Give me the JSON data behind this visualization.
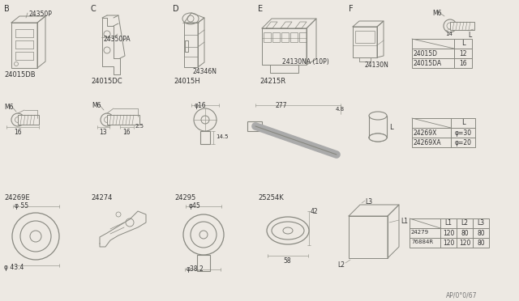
{
  "bg_color": "#ede9e3",
  "line_color": "#888880",
  "text_color": "#333333",
  "fig_width": 6.4,
  "fig_height": 3.72,
  "dpi": 100,
  "watermark": "AP/0°0/67",
  "table1": {
    "rows": [
      [
        "24015D",
        "12"
      ],
      [
        "24015DA",
        "16"
      ]
    ]
  },
  "table2": {
    "rows": [
      [
        "24269X",
        "φ=30"
      ],
      [
        "24269XA",
        "φ=20"
      ]
    ]
  },
  "table3": {
    "rows": [
      [
        "24279",
        "120",
        "80",
        "80"
      ],
      [
        "76884R",
        "120",
        "120",
        "80"
      ]
    ]
  }
}
